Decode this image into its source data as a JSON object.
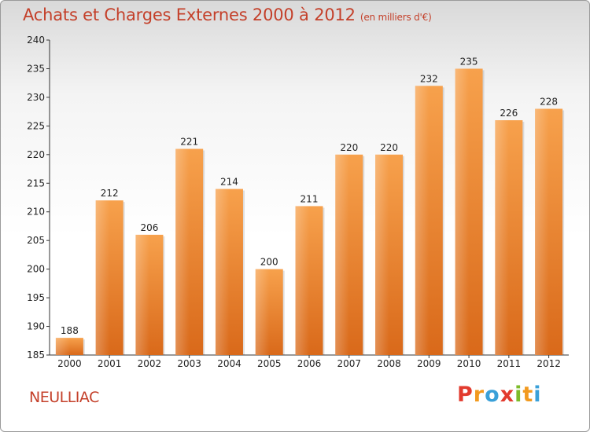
{
  "header": {
    "title": "Achats et Charges Externes 2000 à 2012",
    "subtitle": "(en milliers d'€)"
  },
  "footer": {
    "commune": "NEULLIAC",
    "logo": "Proxiti",
    "logo_colors": [
      "#e23b2e",
      "#f29a1f",
      "#3aa0d8",
      "#e23b2e",
      "#7dbb2a",
      "#f29a1f",
      "#3aa0d8"
    ]
  },
  "chart_data": {
    "type": "bar",
    "categories": [
      "2000",
      "2001",
      "2002",
      "2003",
      "2004",
      "2005",
      "2006",
      "2007",
      "2008",
      "2009",
      "2010",
      "2011",
      "2012"
    ],
    "values": [
      188,
      212,
      206,
      221,
      214,
      200,
      211,
      220,
      220,
      232,
      235,
      226,
      228
    ],
    "title": "Achats et Charges Externes 2000 à 2012",
    "subtitle": "(en milliers d'€)",
    "ylim": [
      185,
      240
    ],
    "yticks": [
      185,
      190,
      195,
      200,
      205,
      210,
      215,
      220,
      225,
      230,
      235,
      240
    ],
    "grid": false,
    "bar_color": "#f07f24"
  }
}
